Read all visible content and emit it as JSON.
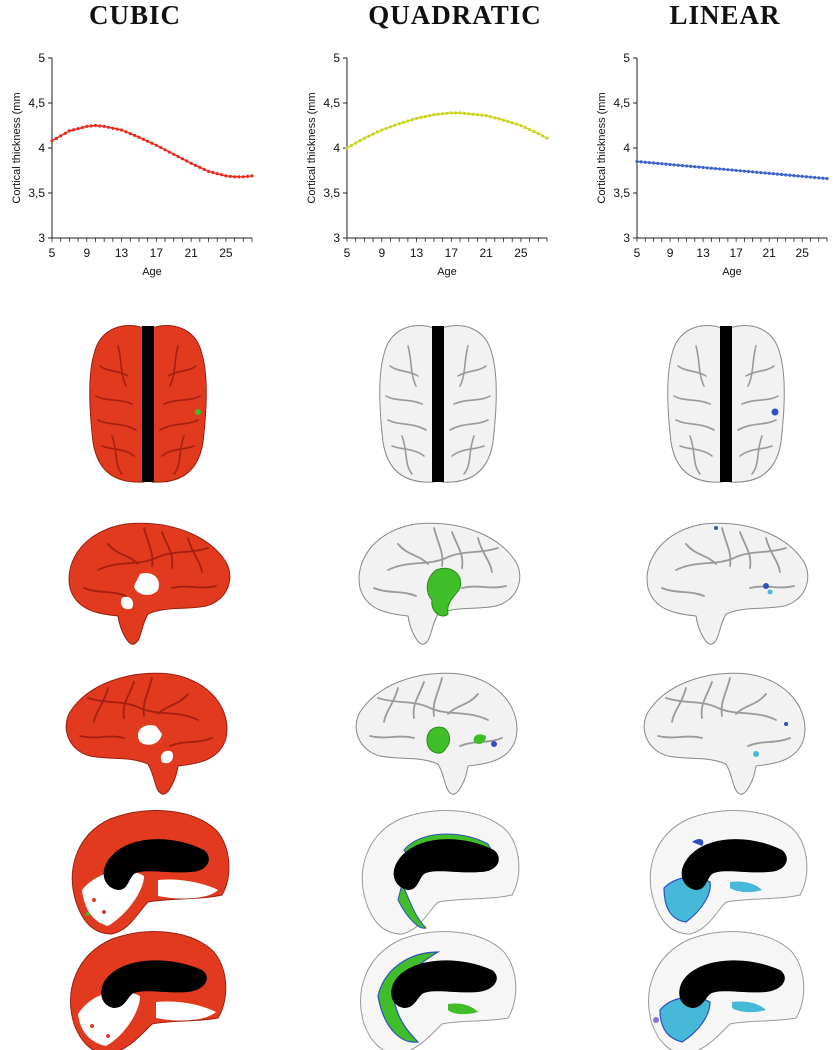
{
  "panels": [
    {
      "title": "CUBIC",
      "color": "#e8291c"
    },
    {
      "title": "QUADRATIC",
      "color": "#cbd41d"
    },
    {
      "title": "LINEAR",
      "color": "#3f63c8"
    }
  ],
  "map_colors": {
    "cubic": "#e23a1e",
    "quadratic": "#3fbe2a",
    "linear_light": "#46b9d8",
    "linear_dark": "#2f4fc4",
    "cortex": "#f2f2f2",
    "medial_wall": "#000000"
  },
  "chart_data": [
    {
      "type": "line",
      "title": "CUBIC",
      "xlabel": "Age",
      "ylabel": "Cortical thickness (mm",
      "xlim": [
        5,
        28
      ],
      "ylim": [
        3,
        5
      ],
      "xticks": [
        "5",
        "9",
        "13",
        "17",
        "21",
        "25"
      ],
      "yticks": [
        "3",
        "3,5",
        "4",
        "4,5",
        "5"
      ],
      "series": [
        {
          "x": [
            5,
            7,
            9,
            10,
            11,
            13,
            15,
            17,
            19,
            21,
            23,
            25,
            26,
            27,
            28
          ],
          "values": [
            4.08,
            4.19,
            4.24,
            4.25,
            4.24,
            4.2,
            4.12,
            4.03,
            3.93,
            3.83,
            3.74,
            3.69,
            3.68,
            3.68,
            3.69
          ]
        }
      ],
      "grid": false
    },
    {
      "type": "line",
      "title": "QUADRATIC",
      "xlabel": "Age",
      "ylabel": "Cortical thickness (mm",
      "xlim": [
        5,
        28
      ],
      "ylim": [
        3,
        5
      ],
      "xticks": [
        "5",
        "9",
        "13",
        "17",
        "21",
        "25"
      ],
      "yticks": [
        "3",
        "3,5",
        "4",
        "4,5",
        "5"
      ],
      "series": [
        {
          "x": [
            5,
            7,
            9,
            11,
            13,
            15,
            17,
            18,
            19,
            21,
            23,
            25,
            27,
            28
          ],
          "values": [
            4.0,
            4.11,
            4.2,
            4.27,
            4.33,
            4.37,
            4.39,
            4.39,
            4.38,
            4.36,
            4.31,
            4.25,
            4.16,
            4.11
          ]
        }
      ],
      "grid": false
    },
    {
      "type": "line",
      "title": "LINEAR",
      "xlabel": "Age",
      "ylabel": "Cortical thickness (mm",
      "xlim": [
        5,
        28
      ],
      "ylim": [
        3,
        5
      ],
      "xticks": [
        "5",
        "9",
        "13",
        "17",
        "21",
        "25"
      ],
      "yticks": [
        "3",
        "3,5",
        "4",
        "4,5",
        "5"
      ],
      "series": [
        {
          "x": [
            5,
            28
          ],
          "values": [
            3.85,
            3.66
          ]
        }
      ],
      "grid": false
    }
  ]
}
